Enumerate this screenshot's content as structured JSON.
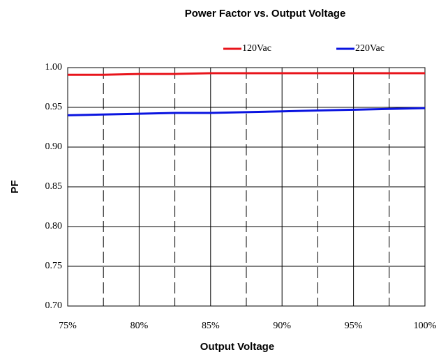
{
  "chart_data": {
    "type": "line",
    "title": "Power Factor vs. Output Voltage",
    "xlabel": "Output Voltage",
    "ylabel": "PF",
    "x": [
      75,
      77.5,
      80,
      82.5,
      85,
      87.5,
      90,
      92.5,
      95,
      97.5,
      100
    ],
    "series": [
      {
        "name": "120Vac",
        "color": "#e8141b",
        "values": [
          0.991,
          0.991,
          0.992,
          0.992,
          0.993,
          0.993,
          0.993,
          0.993,
          0.993,
          0.993,
          0.993
        ]
      },
      {
        "name": "220Vac",
        "color": "#0a14e0",
        "values": [
          0.94,
          0.941,
          0.942,
          0.943,
          0.943,
          0.944,
          0.945,
          0.946,
          0.947,
          0.948,
          0.949
        ]
      }
    ],
    "xlim": [
      75,
      100
    ],
    "xticks": [
      {
        "value": 75,
        "label": "75%"
      },
      {
        "value": 80,
        "label": "80%"
      },
      {
        "value": 85,
        "label": "85%"
      },
      {
        "value": 90,
        "label": "90%"
      },
      {
        "value": 95,
        "label": "95%"
      },
      {
        "value": 100,
        "label": "100%"
      }
    ],
    "xminorticks": [
      77.5,
      82.5,
      87.5,
      92.5,
      97.5
    ],
    "ylim": [
      0.7,
      1.0
    ],
    "yticks": [
      {
        "value": 0.7,
        "label": "0.70"
      },
      {
        "value": 0.75,
        "label": "0.75"
      },
      {
        "value": 0.8,
        "label": "0.80"
      },
      {
        "value": 0.85,
        "label": "0.85"
      },
      {
        "value": 0.9,
        "label": "0.90"
      },
      {
        "value": 0.95,
        "label": "0.95"
      },
      {
        "value": 1.0,
        "label": "1.00"
      }
    ],
    "grid": true,
    "legend": "top-right"
  }
}
